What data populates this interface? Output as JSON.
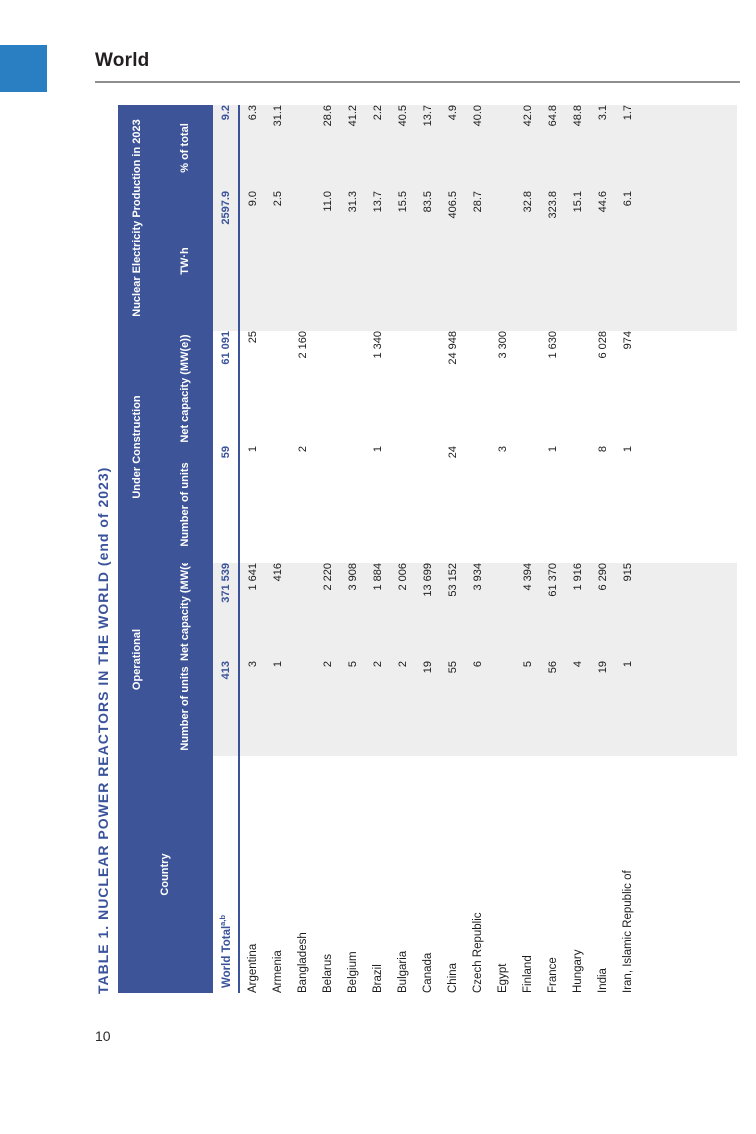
{
  "page": {
    "heading": "World",
    "page_number": "10"
  },
  "colors": {
    "accent_blue": "#3b539b",
    "header_blue": "#3d5499",
    "corner_blue": "#2a7fc2",
    "shading_gray": "#eeeeee"
  },
  "table": {
    "title": "TABLE 1. NUCLEAR POWER REACTORS IN THE WORLD (end of 2023)",
    "header": {
      "country": "Country",
      "groups": [
        {
          "label": "Operational",
          "sub": [
            "Number\nof units",
            "Net capacity\n(MW(e))"
          ]
        },
        {
          "label": "Under Construction",
          "sub": [
            "Number\nof units",
            "Net capacity\n(MW(e))"
          ]
        },
        {
          "label": "Nuclear Electricity\nProduction in 2023",
          "sub": [
            "TW·h",
            "% of total"
          ]
        }
      ]
    },
    "total_row": {
      "label": "World Total",
      "superscript": "a,b",
      "values": [
        "413",
        "371 539",
        "59",
        "61 091",
        "2597.9",
        "9.2"
      ]
    },
    "rows": [
      {
        "country": "Argentina",
        "values": [
          "3",
          "1 641",
          "1",
          "25",
          "9.0",
          "6.3"
        ]
      },
      {
        "country": "Armenia",
        "values": [
          "1",
          "416",
          "",
          "",
          "2.5",
          "31.1"
        ]
      },
      {
        "country": "Bangladesh",
        "values": [
          "",
          "",
          "2",
          "2 160",
          "",
          ""
        ]
      },
      {
        "country": "Belarus",
        "values": [
          "2",
          "2 220",
          "",
          "",
          "11.0",
          "28.6"
        ]
      },
      {
        "country": "Belgium",
        "values": [
          "5",
          "3 908",
          "",
          "",
          "31.3",
          "41.2"
        ]
      },
      {
        "country": "Brazil",
        "values": [
          "2",
          "1 884",
          "1",
          "1 340",
          "13.7",
          "2.2"
        ]
      },
      {
        "country": "Bulgaria",
        "values": [
          "2",
          "2 006",
          "",
          "",
          "15.5",
          "40.5"
        ]
      },
      {
        "country": "Canada",
        "values": [
          "19",
          "13 699",
          "",
          "",
          "83.5",
          "13.7"
        ]
      },
      {
        "country": "China",
        "values": [
          "55",
          "53 152",
          "24",
          "24 948",
          "406.5",
          "4.9"
        ]
      },
      {
        "country": "Czech Republic",
        "values": [
          "6",
          "3 934",
          "",
          "",
          "28.7",
          "40.0"
        ]
      },
      {
        "country": "Egypt",
        "values": [
          "",
          "",
          "3",
          "3 300",
          "",
          ""
        ]
      },
      {
        "country": "Finland",
        "values": [
          "5",
          "4 394",
          "",
          "",
          "32.8",
          "42.0"
        ]
      },
      {
        "country": "France",
        "values": [
          "56",
          "61 370",
          "1",
          "1 630",
          "323.8",
          "64.8"
        ]
      },
      {
        "country": "Hungary",
        "values": [
          "4",
          "1 916",
          "",
          "",
          "15.1",
          "48.8"
        ]
      },
      {
        "country": "India",
        "values": [
          "19",
          "6 290",
          "8",
          "6 028",
          "44.6",
          "3.1"
        ]
      },
      {
        "country": "Iran, Islamic Republic of",
        "values": [
          "1",
          "915",
          "1",
          "974",
          "6.1",
          "1.7"
        ]
      }
    ]
  }
}
